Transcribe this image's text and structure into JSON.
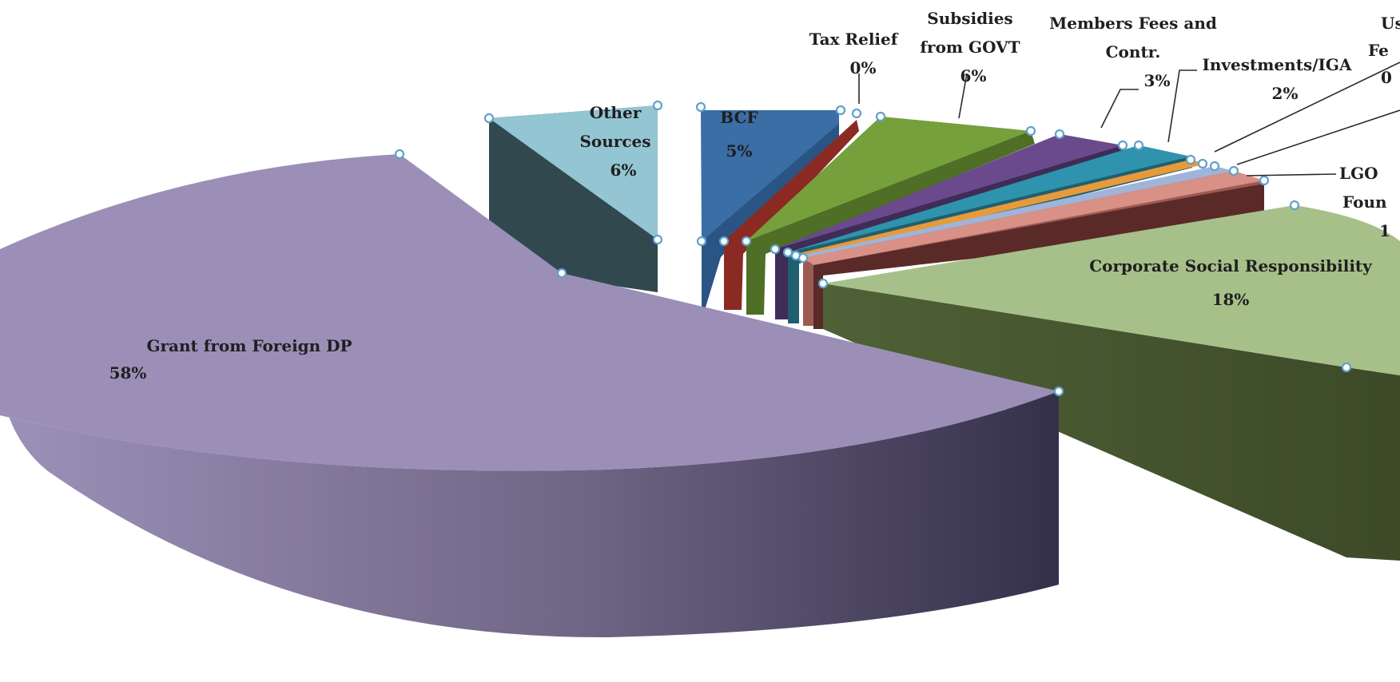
{
  "chart_data": {
    "type": "pie",
    "style": "3d-exploded",
    "slices": [
      {
        "label": "Grant from Foreign DP",
        "value": 58,
        "value_label": "58%",
        "top_color": "#9b8fb7",
        "side_color": "#3e3a54"
      },
      {
        "label": "Other Sources",
        "value": 6,
        "value_label": "6%",
        "top_color": "#93c5d3",
        "side_color": "#31484f"
      },
      {
        "label": "BCF",
        "value": 5,
        "value_label": "5%",
        "top_color": "#3a6ea5",
        "side_color": "#2a5484"
      },
      {
        "label": "Tax Relief",
        "value": 0,
        "value_label": "0%",
        "top_color": "#b03a2e",
        "side_color": "#8b2a22"
      },
      {
        "label": "Subsidies from GOVT",
        "value": 6,
        "value_label": "6%",
        "top_color": "#76a03c",
        "side_color": "#4f6e26"
      },
      {
        "label": "Members Fees and Contr.",
        "value": 3,
        "value_label": "3%",
        "top_color": "#6a4a8c",
        "side_color": "#3f2c57"
      },
      {
        "label": "Investments/IGA",
        "value": 2,
        "value_label": "2%",
        "top_color": "#2f93ad",
        "side_color": "#1f5f70"
      },
      {
        "label": "Us Fe",
        "value": 0,
        "value_label": "0",
        "top_color": "#e69a3a",
        "side_color": "#a86a22"
      },
      {
        "label": "",
        "value": 0,
        "value_label": "",
        "top_color": "#9fb4d8",
        "side_color": "#6b7fa3"
      },
      {
        "label": "LGO Foun",
        "value": 1,
        "value_label": "1",
        "top_color": "#d99086",
        "side_color": "#9c5a52"
      },
      {
        "label": "",
        "value": 0,
        "value_label": "",
        "top_color": "#7a3b3a",
        "side_color": "#5a2a29"
      },
      {
        "label": "Corporate Social Responsibility",
        "value": 18,
        "value_label": "18%",
        "top_color": "#a7c08a",
        "side_color": "#4e5f36"
      }
    ]
  }
}
